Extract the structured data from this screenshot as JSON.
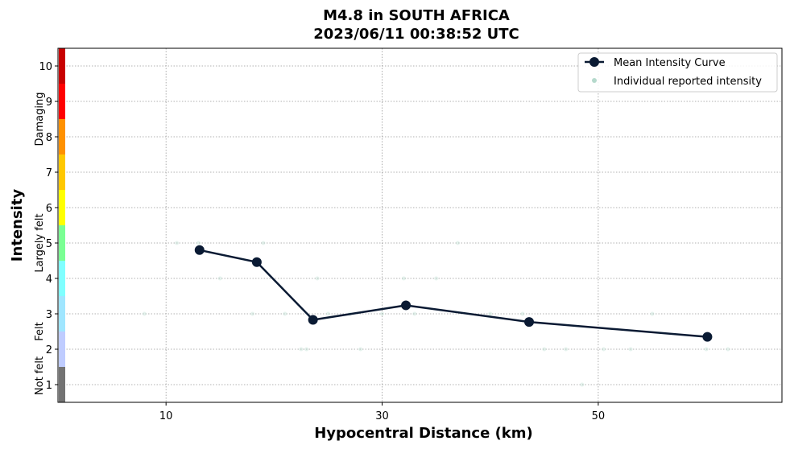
{
  "chart_data": {
    "type": "line",
    "title_line1": "M4.8 in SOUTH AFRICA",
    "title_line2": "2023/06/11 00:38:52 UTC",
    "xlabel": "Hypocentral Distance (km)",
    "ylabel": "Intensity",
    "xlim": [
      0,
      67
    ],
    "ylim": [
      0.5,
      10.5
    ],
    "x_ticks": [
      10,
      30,
      50
    ],
    "y_ticks": [
      1,
      2,
      3,
      4,
      5,
      6,
      7,
      8,
      9,
      10
    ],
    "grid": true,
    "legend_position": "top-right",
    "intensity_bands": [
      {
        "label": "Not felt",
        "from": 1,
        "to": 1.5
      },
      {
        "label": "Felt",
        "from": 1.5,
        "to": 3.5
      },
      {
        "label": "Largely felt",
        "from": 3.5,
        "to": 6.5
      },
      {
        "label": "Damaging",
        "from": 6.5,
        "to": 10.5
      }
    ],
    "colorbar": [
      {
        "from": 0.5,
        "to": 1.5,
        "color": "#737373"
      },
      {
        "from": 1.5,
        "to": 2.5,
        "color": "#bfccff"
      },
      {
        "from": 2.5,
        "to": 3.5,
        "color": "#a0e6ff"
      },
      {
        "from": 3.5,
        "to": 4.5,
        "color": "#80ffff"
      },
      {
        "from": 4.5,
        "to": 5.5,
        "color": "#7aff93"
      },
      {
        "from": 5.5,
        "to": 6.5,
        "color": "#ffff00"
      },
      {
        "from": 6.5,
        "to": 7.5,
        "color": "#ffc800"
      },
      {
        "from": 7.5,
        "to": 8.5,
        "color": "#ff9100"
      },
      {
        "from": 8.5,
        "to": 9.5,
        "color": "#ff0000"
      },
      {
        "from": 9.5,
        "to": 10.5,
        "color": "#c80000"
      }
    ],
    "series": [
      {
        "name": "Mean Intensity Curve",
        "color": "#0a1a33",
        "x": [
          13.1,
          18.4,
          23.6,
          32.2,
          43.6,
          60.1
        ],
        "y": [
          4.8,
          4.46,
          2.83,
          3.24,
          2.77,
          2.35
        ]
      },
      {
        "name": "Individual reported intensity",
        "color": "#b5d9cc",
        "x": [
          13.0,
          15.0,
          18.0,
          19.0,
          21.0,
          22.5,
          23.0,
          24.0,
          25.0,
          28.0,
          30.0,
          32.0,
          33.0,
          35.0,
          37.0,
          43.0,
          47.0,
          48.5,
          50.5,
          53.0,
          60.0,
          8.0,
          11.0,
          27.0,
          40.0,
          45.0,
          55.0,
          62.0
        ],
        "y": [
          5.0,
          4.0,
          3.0,
          5.0,
          3.0,
          2.0,
          2.0,
          4.0,
          3.0,
          2.0,
          3.0,
          4.0,
          3.0,
          4.0,
          5.0,
          3.0,
          2.0,
          1.0,
          2.0,
          2.0,
          2.0,
          3.0,
          5.0,
          3.0,
          3.0,
          2.0,
          3.0,
          2.0
        ]
      }
    ]
  }
}
